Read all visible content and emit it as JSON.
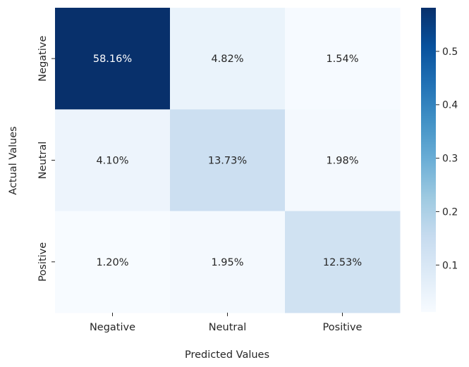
{
  "chart_data": {
    "type": "heatmap",
    "xlabel": "Predicted Values",
    "ylabel": "Actual Values",
    "x_categories": [
      "Negative",
      "Neutral",
      "Positive"
    ],
    "y_categories": [
      "Negative",
      "Neutral",
      "Positive"
    ],
    "values": [
      [
        0.5816,
        0.0482,
        0.0154
      ],
      [
        0.041,
        0.1373,
        0.0198
      ],
      [
        0.012,
        0.0195,
        0.1253
      ]
    ],
    "cell_labels": [
      [
        "58.16%",
        "4.82%",
        "1.54%"
      ],
      [
        "4.10%",
        "13.73%",
        "1.98%"
      ],
      [
        "1.20%",
        "1.95%",
        "12.53%"
      ]
    ],
    "colormap": "Blues",
    "color_low": "#f7fbff",
    "color_high": "#08306b",
    "colorbar": {
      "range": [
        0.012,
        0.5816
      ],
      "ticks": [
        0.1,
        0.2,
        0.3,
        0.4,
        0.5
      ],
      "tick_labels": [
        "0.1",
        "0.2",
        "0.3",
        "0.4",
        "0.5"
      ]
    },
    "grid": false
  }
}
